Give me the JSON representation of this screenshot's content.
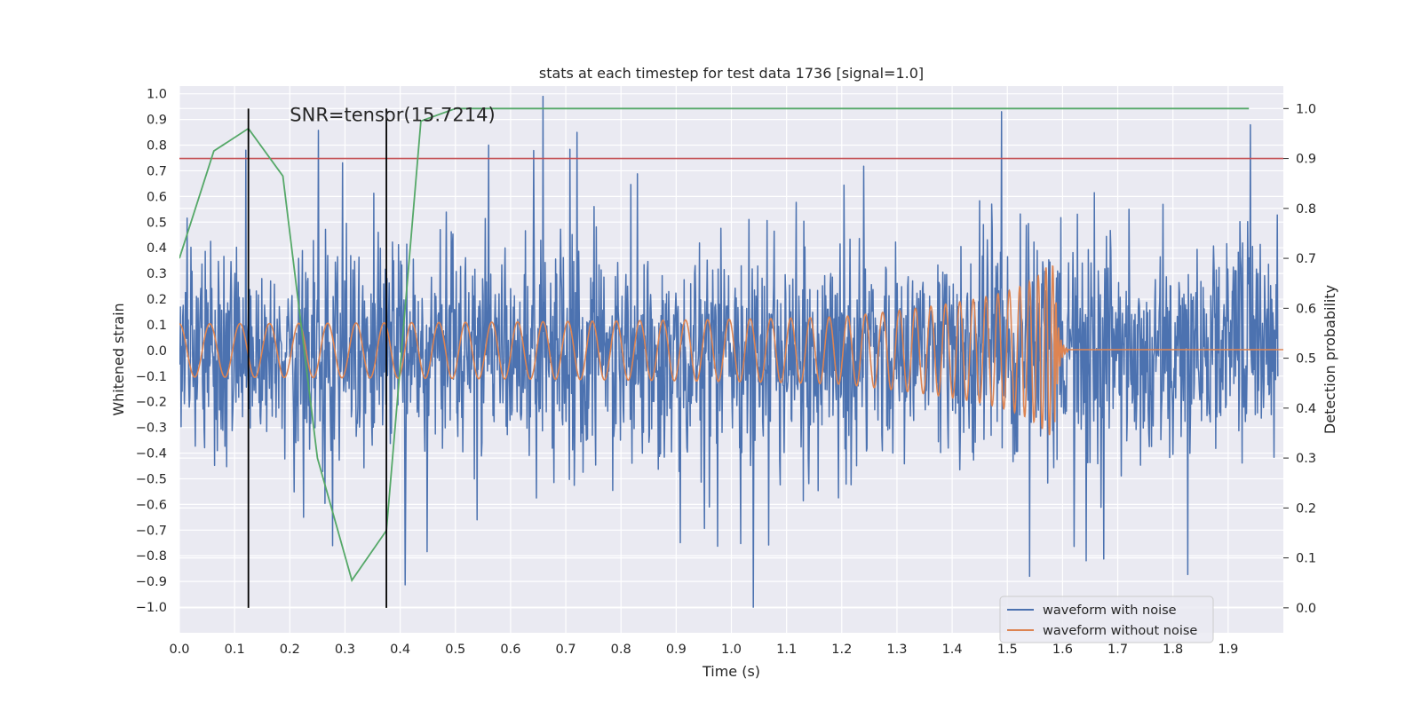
{
  "chart_data": {
    "type": "line",
    "title": "stats at each timestep for test data 1736 [signal=1.0]",
    "xlabel": "Time (s)",
    "ylabel_left": "Whitened strain",
    "ylabel_right": "Detection probability",
    "xlim": [
      0.0,
      2.0
    ],
    "ylim_left": [
      -1.1,
      1.03
    ],
    "ylim_right": [
      -0.05,
      1.045
    ],
    "xticks": [
      "0.0",
      "0.1",
      "0.2",
      "0.3",
      "0.4",
      "0.5",
      "0.6",
      "0.7",
      "0.8",
      "0.9",
      "1.0",
      "1.1",
      "1.2",
      "1.3",
      "1.4",
      "1.5",
      "1.6",
      "1.7",
      "1.8",
      "1.9"
    ],
    "yticks_left": [
      "1.0",
      "0.9",
      "0.8",
      "0.7",
      "0.6",
      "0.5",
      "0.4",
      "0.3",
      "0.2",
      "0.1",
      "0.0",
      "−0.1",
      "−0.2",
      "−0.3",
      "−0.4",
      "−0.5",
      "−0.6",
      "−0.7",
      "−0.8",
      "−0.9",
      "−1.0"
    ],
    "yticks_right": [
      "1.0",
      "0.9",
      "0.8",
      "0.7",
      "0.6",
      "0.5",
      "0.4",
      "0.3",
      "0.2",
      "0.1",
      "0.0"
    ],
    "grid": true,
    "legend_position": "bottom-right",
    "annotation": "SNR=tensor(15.7214)",
    "colors": {
      "background": "#eaeaf2",
      "grid": "#ffffff",
      "noisy": "#4c72b0",
      "clean": "#dd8452",
      "probability": "#55a868",
      "threshold": "#c44e52",
      "markers": "#000000"
    },
    "series": [
      {
        "name": "waveform with noise",
        "axis": "left",
        "description_samples": "dense noisy strain, approx +/-0.35 typical amplitude with spikes",
        "peaks": [
          {
            "x": 0.12,
            "y": 0.78
          },
          {
            "x": 0.56,
            "y": 0.8
          },
          {
            "x": 0.72,
            "y": 0.85
          },
          {
            "x": 1.04,
            "y": -1.0
          },
          {
            "x": 1.49,
            "y": 0.93
          },
          {
            "x": 1.54,
            "y": -0.88
          }
        ]
      },
      {
        "name": "waveform without noise",
        "axis": "left",
        "chirp": {
          "start": 0.0,
          "merger": 1.585,
          "amp_start": 0.075,
          "amp_peak": 0.33
        }
      },
      {
        "name": "detection probability",
        "axis": "right",
        "x": [
          0.0,
          0.0625,
          0.125,
          0.1875,
          0.25,
          0.3125,
          0.375,
          0.4375,
          0.5,
          0.5625,
          0.625,
          0.6875,
          0.75,
          0.8125,
          0.875,
          0.9375,
          1.0,
          1.0625,
          1.125,
          1.1875,
          1.25,
          1.3125,
          1.375,
          1.4375,
          1.5,
          1.5625,
          1.625,
          1.6875,
          1.75,
          1.8125,
          1.875,
          1.9375
        ],
        "values": [
          0.7,
          0.915,
          0.96,
          0.865,
          0.3,
          0.055,
          0.155,
          0.975,
          1.0,
          1.0,
          1.0,
          1.0,
          1.0,
          1.0,
          1.0,
          1.0,
          1.0,
          1.0,
          1.0,
          1.0,
          1.0,
          1.0,
          1.0,
          1.0,
          1.0,
          1.0,
          1.0,
          1.0,
          1.0,
          1.0,
          1.0,
          1.0
        ]
      }
    ],
    "threshold": {
      "axis": "right",
      "value": 0.9
    },
    "vertical_markers": [
      0.125,
      0.375
    ],
    "legend": [
      "waveform with noise",
      "waveform without noise"
    ]
  }
}
